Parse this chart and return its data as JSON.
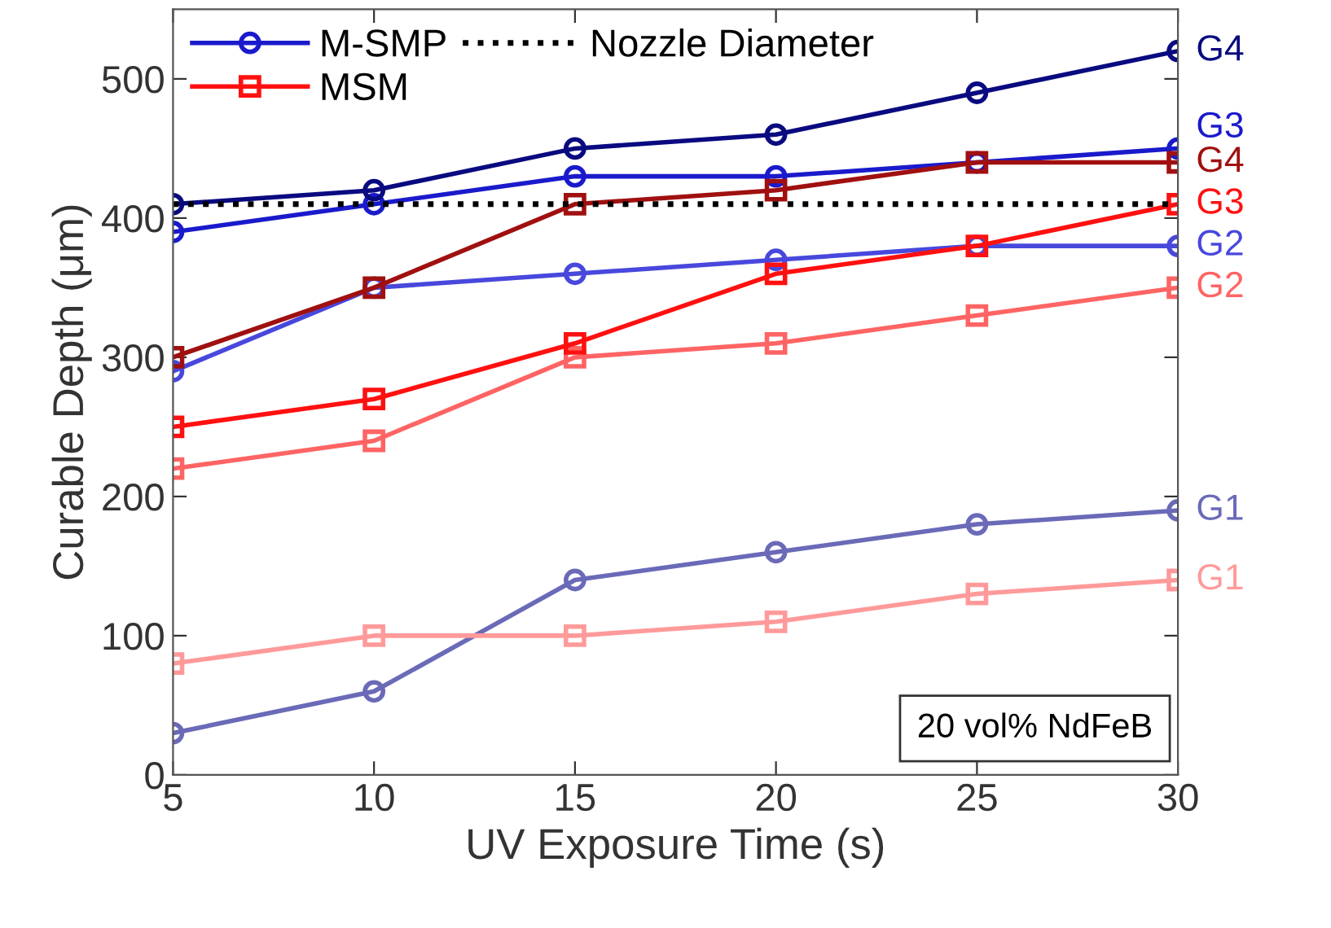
{
  "chart_data": {
    "type": "line",
    "xlabel": "UV Exposure Time (s)",
    "ylabel": "Curable Depth (μm)",
    "x": [
      5,
      10,
      15,
      20,
      25,
      30
    ],
    "series": [
      {
        "color": "#6a6ab8",
        "marker": "circle",
        "values": [
          30,
          60,
          140,
          160,
          180,
          190
        ]
      },
      {
        "color": "#4848dd",
        "marker": "circle",
        "values": [
          290,
          350,
          360,
          370,
          380,
          380
        ]
      },
      {
        "name": "M-SMP",
        "color": "#1a1acc",
        "marker": "circle",
        "values": [
          390,
          410,
          430,
          430,
          440,
          450
        ]
      },
      {
        "color": "#0a0a80",
        "marker": "circle",
        "values": [
          410,
          420,
          450,
          460,
          490,
          520
        ]
      },
      {
        "color": "#ff9a9a",
        "marker": "square",
        "values": [
          80,
          100,
          100,
          110,
          130,
          140
        ]
      },
      {
        "color": "#ff6464",
        "marker": "square",
        "values": [
          220,
          240,
          300,
          310,
          330,
          350
        ]
      },
      {
        "name": "MSM",
        "color": "#ff1010",
        "marker": "square",
        "values": [
          250,
          270,
          310,
          360,
          380,
          410
        ]
      },
      {
        "color": "#a01010",
        "marker": "square",
        "values": [
          300,
          350,
          410,
          420,
          440,
          440
        ]
      }
    ],
    "ref_lines": [
      {
        "axis": "y",
        "value": 410,
        "label": "Nozzle Diameter",
        "color": "#000000",
        "line_style": "dotted"
      }
    ],
    "annotations": [
      "G1",
      "G2",
      "G3",
      "G4",
      "G1",
      "G2",
      "G3",
      "G4",
      "20 vol% NdFeB"
    ],
    "xlim": [
      5,
      30
    ],
    "xticks": [
      5,
      10,
      15,
      20,
      25,
      30
    ],
    "ylim": [
      0,
      550
    ],
    "yticks": [
      0,
      100,
      200,
      300,
      400,
      500
    ],
    "grid": false,
    "legend": "top left"
  }
}
